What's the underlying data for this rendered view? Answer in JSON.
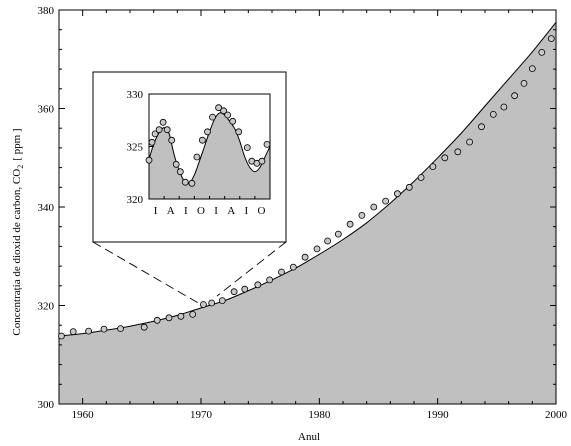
{
  "chart_data": [
    {
      "type": "area",
      "xlabel": "Anul",
      "ylabel": "Concentrația de dioxid de carbon, CO",
      "ylabel_sub": "2",
      "ylabel_unit": "[ ppm ]",
      "xlim": [
        1958,
        2000
      ],
      "ylim": [
        300,
        380
      ],
      "xticks": [
        1960,
        1970,
        1980,
        1990,
        2000
      ],
      "yticks": [
        300,
        320,
        340,
        360,
        380
      ],
      "fill_color": "#c0c0c0",
      "curve": {
        "x": [
          1958,
          1960,
          1962,
          1964,
          1966,
          1968,
          1970,
          1972,
          1974,
          1976,
          1978,
          1980,
          1982,
          1984,
          1986,
          1988,
          1990,
          1992,
          1994,
          1996,
          1998,
          2000
        ],
        "y": [
          313.8,
          314.3,
          315.0,
          315.8,
          316.8,
          318.0,
          319.5,
          321.0,
          323.0,
          325.2,
          327.6,
          330.4,
          333.4,
          336.8,
          340.8,
          345.2,
          350.0,
          355.0,
          360.5,
          366.0,
          371.5,
          377.5
        ]
      },
      "points": {
        "x": [
          1958.2,
          1959.2,
          1960.5,
          1961.8,
          1963.2,
          1965.2,
          1966.3,
          1967.3,
          1968.3,
          1969.3,
          1970.2,
          1970.9,
          1971.8,
          1972.8,
          1973.7,
          1974.8,
          1975.8,
          1976.8,
          1977.8,
          1978.8,
          1979.8,
          1980.7,
          1981.6,
          1982.6,
          1983.6,
          1984.6,
          1985.6,
          1986.6,
          1987.6,
          1988.6,
          1989.6,
          1990.6,
          1991.7,
          1992.7,
          1993.7,
          1994.7,
          1995.6,
          1996.5,
          1997.3,
          1998.0,
          1998.8,
          1999.6
        ],
        "y": [
          313.8,
          314.7,
          314.8,
          315.2,
          315.3,
          315.6,
          317.0,
          317.5,
          317.8,
          318.2,
          320.2,
          320.5,
          321.0,
          322.8,
          323.3,
          324.2,
          325.2,
          326.8,
          327.8,
          329.8,
          331.5,
          333.1,
          334.5,
          336.5,
          338.3,
          340.0,
          341.2,
          342.7,
          344.0,
          346.0,
          348.2,
          350.0,
          351.2,
          353.2,
          356.3,
          358.8,
          360.3,
          362.6,
          365.1,
          368.1,
          371.4,
          374.2
        ]
      }
    },
    {
      "type": "line",
      "title": "",
      "ylim": [
        320,
        330
      ],
      "yticks": [
        320,
        325,
        330
      ],
      "month_labels": [
        "I",
        "A",
        "I",
        "O",
        "I",
        "A",
        "I",
        "O"
      ],
      "curve": {
        "x": [
          0,
          1,
          2,
          3,
          4,
          5,
          6,
          7,
          8,
          9,
          10,
          11,
          12,
          13,
          14,
          15,
          16,
          17,
          18,
          19,
          20,
          21,
          22,
          23,
          24
        ],
        "y": [
          323.8,
          325.3,
          326.3,
          326.8,
          326.2,
          324.2,
          322.7,
          321.7,
          321.5,
          322.3,
          323.6,
          325.0,
          326.4,
          327.6,
          328.2,
          328.0,
          327.4,
          326.7,
          325.5,
          324.0,
          323.0,
          322.6,
          323.0,
          324.0,
          325.0
        ]
      },
      "points": {
        "x": [
          0,
          0.6,
          1.2,
          2.0,
          2.8,
          3.6,
          4.5,
          5.4,
          6.2,
          7.2,
          8.5,
          9.5,
          10.6,
          11.6,
          12.6,
          13.8,
          14.8,
          15.6,
          16.6,
          17.8,
          19.5,
          20.4,
          21.4,
          22.4,
          23.4
        ],
        "y": [
          323.7,
          325.4,
          326.2,
          326.6,
          327.3,
          326.6,
          325.6,
          323.3,
          322.6,
          321.6,
          321.5,
          324.0,
          325.6,
          326.4,
          327.8,
          328.7,
          328.4,
          328.0,
          327.4,
          326.4,
          324.9,
          323.6,
          323.4,
          323.6,
          325.2
        ]
      }
    }
  ]
}
